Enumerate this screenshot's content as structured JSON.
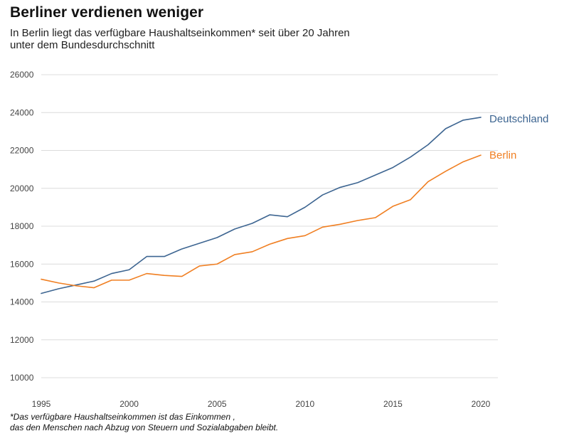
{
  "chart_data": {
    "type": "line",
    "title": "Berliner verdienen weniger",
    "subtitle_lines": [
      "In Berlin liegt das verfügbare Haushaltseinkommen* seit über 20 Jahren",
      "unter dem Bundesdurchschnitt"
    ],
    "footnote_lines": [
      "*Das verfügbare Haushaltseinkommen ist das Einkommen ,",
      "das den Menschen nach Abzug von Steuern und Sozialabgaben bleibt."
    ],
    "x": [
      1995,
      1996,
      1997,
      1998,
      1999,
      2000,
      2001,
      2002,
      2003,
      2004,
      2005,
      2006,
      2007,
      2008,
      2009,
      2010,
      2011,
      2012,
      2013,
      2014,
      2015,
      2016,
      2017,
      2018,
      2019,
      2020
    ],
    "xlim": [
      1995,
      2020
    ],
    "xticks": [
      "1995",
      "2000",
      "2005",
      "2010",
      "2015",
      "2020"
    ],
    "ylim": [
      10000,
      26000
    ],
    "yticks": [
      "10000",
      "12000",
      "14000",
      "16000",
      "18000",
      "20000",
      "22000",
      "24000",
      "26000"
    ],
    "grid": true,
    "legend": "direct labels at line ends",
    "series": [
      {
        "name": "Deutschland",
        "color": "#3d6591",
        "values": [
          14450,
          14700,
          14900,
          15100,
          15500,
          15700,
          16400,
          16400,
          16800,
          17100,
          17400,
          17850,
          18150,
          18600,
          18500,
          19000,
          19650,
          20050,
          20300,
          20700,
          21100,
          21650,
          22300,
          23150,
          23600,
          23750
        ]
      },
      {
        "name": "Berlin",
        "color": "#f07f22",
        "values": [
          15200,
          15000,
          14850,
          14750,
          15150,
          15150,
          15500,
          15400,
          15350,
          15900,
          16000,
          16500,
          16650,
          17050,
          17350,
          17500,
          17950,
          18100,
          18300,
          18450,
          19050,
          19400,
          20350,
          20900,
          21400,
          21750
        ]
      }
    ]
  }
}
